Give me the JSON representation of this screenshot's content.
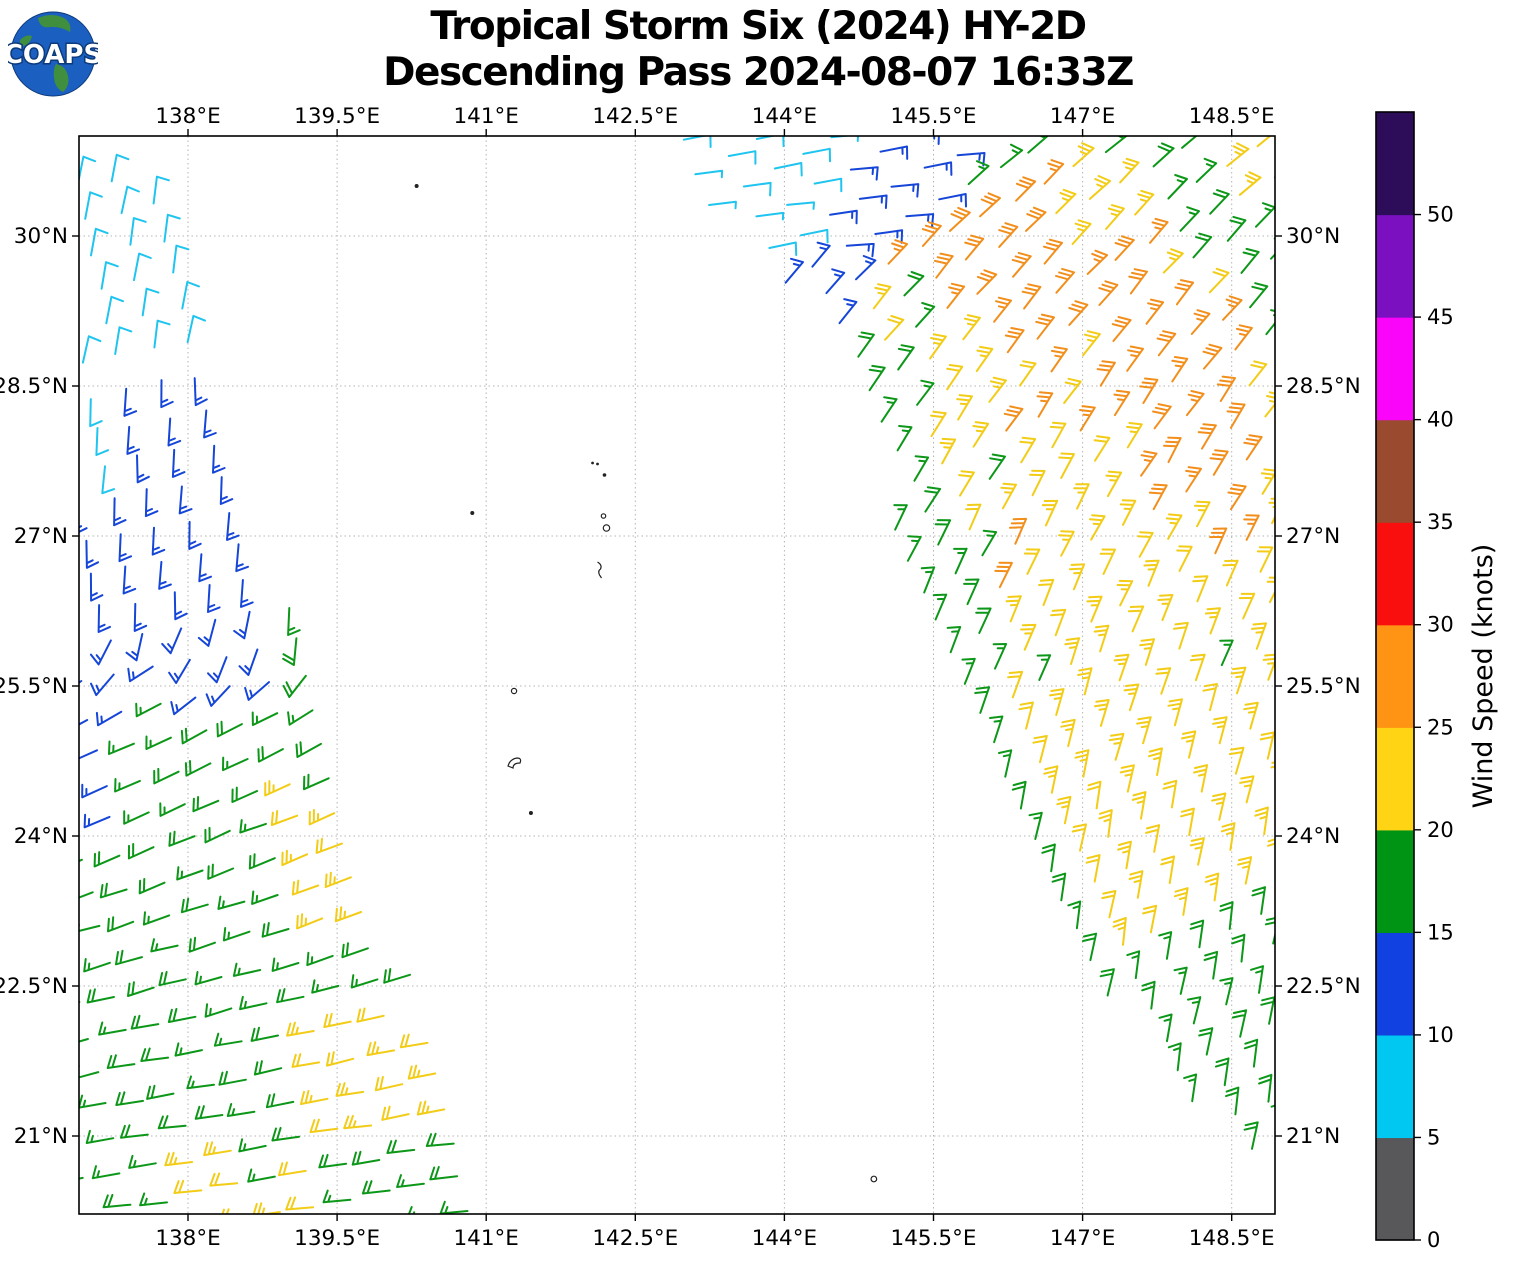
{
  "header": {
    "title_line1": "Tropical Storm Six (2024) HY-2D",
    "title_line2": "Descending Pass 2024-08-07 16:33Z",
    "logo_text": "COAPS"
  },
  "colorbar": {
    "label": "Wind Speed (knots)",
    "tick_labels": [
      "0",
      "5",
      "10",
      "15",
      "20",
      "25",
      "30",
      "35",
      "40",
      "45",
      "50"
    ],
    "levels": [
      0,
      5,
      10,
      15,
      20,
      25,
      30,
      35,
      40,
      45,
      50
    ],
    "segment_colors_bottom_to_top": [
      "#58585a",
      "#00c8f0",
      "#1141e0",
      "#009415",
      "#ffd414",
      "#ff9313",
      "#fa0f0f",
      "#9a4b2f",
      "#fa05fa",
      "#7a10c0",
      "#2d0d5a"
    ]
  },
  "map": {
    "lon_ticks": [
      {
        "v": 138,
        "label": "138°E"
      },
      {
        "v": 139.5,
        "label": "139.5°E"
      },
      {
        "v": 141,
        "label": "141°E"
      },
      {
        "v": 142.5,
        "label": "142.5°E"
      },
      {
        "v": 144,
        "label": "144°E"
      },
      {
        "v": 145.5,
        "label": "145.5°E"
      },
      {
        "v": 147,
        "label": "147°E"
      },
      {
        "v": 148.5,
        "label": "148.5°E"
      }
    ],
    "lat_ticks": [
      {
        "v": 30,
        "label": "30°N"
      },
      {
        "v": 28.5,
        "label": "28.5°N"
      },
      {
        "v": 27,
        "label": "27°N"
      },
      {
        "v": 25.5,
        "label": "25.5°N"
      },
      {
        "v": 24,
        "label": "24°N"
      },
      {
        "v": 22.5,
        "label": "22.5°N"
      },
      {
        "v": 21,
        "label": "21°N"
      }
    ],
    "lon_range": [
      136.9,
      148.94
    ],
    "lat_range": [
      20.22,
      31.0
    ]
  },
  "chart_data": {
    "type": "wind_barb_map",
    "title": "Tropical Storm Six (2024) HY-2D",
    "satellite": "HY-2D",
    "pass_type": "Descending",
    "datetime_utc": "2024-08-07 16:33Z",
    "units": "knots",
    "wind_speed_scale": {
      "levels_knots": [
        0,
        5,
        10,
        15,
        20,
        25,
        30,
        35,
        40,
        45,
        50
      ],
      "colors": [
        "#58585a",
        "#00c8f0",
        "#1141e0",
        "#009415",
        "#ffd414",
        "#ff9313",
        "#fa0f0f",
        "#9a4b2f",
        "#fa05fa",
        "#7a10c0",
        "#2d0d5a"
      ]
    },
    "barb_palette": {
      "cyan": "#1fc4ef",
      "blue": "#1646d8",
      "green": "#0c9718",
      "yellow": "#f2cc16",
      "orange": "#f28f1c"
    },
    "barb_glyph": {
      "staff_len": 27,
      "full_feather": 12.5,
      "half_feather": 6.5,
      "feather_spacing": 4.6,
      "stroke_width": 2
    },
    "swaths": [
      {
        "name": "west",
        "right_edge_lon_by_lat": [
          [
            30.6,
            137.9
          ],
          [
            30.3,
            137.97
          ],
          [
            29.0,
            138.15
          ],
          [
            28.0,
            138.45
          ],
          [
            27.0,
            138.8
          ],
          [
            26.0,
            139.15
          ],
          [
            25.0,
            139.45
          ],
          [
            24.0,
            139.85
          ],
          [
            23.0,
            140.1
          ],
          [
            22.0,
            140.45
          ],
          [
            21.0,
            140.85
          ],
          [
            20.2,
            141.2
          ]
        ],
        "top_edge": {
          "lat0": 30.78,
          "slope_per_lon": -0.5,
          "lon0": 136.9
        },
        "lattice": {
          "u": [
            36,
            -7
          ],
          "v": [
            8,
            34
          ]
        },
        "speed_zones_knots": {
          "cyan_lat_min": 28.7,
          "cyan_leftedge_lat_min": 27.8,
          "blue_lat_min": 25.3,
          "blue_leftedge_lat_min": 24.15,
          "green_rightedge_lat_max": 26.8,
          "yellow_band1": {
            "lat": [
              23.0,
              24.45
            ],
            "edge_offset": -0.78
          },
          "yellow_band2": {
            "lat": [
              21.15,
              22.45
            ],
            "lon_min": 139.25
          },
          "yellow_band3": {
            "lat_max": 20.9,
            "lon": [
              137.8,
              139.55
            ]
          }
        },
        "direction_model": {
          "upper": {
            "lat_min": 28.55,
            "staff_deg": 80,
            "feather_off_deg": -100
          },
          "middle": {
            "lat_min": 26.2,
            "staff_deg": 268,
            "feather_off_deg": 115
          },
          "lower": {
            "staff_deg_from_to": [
              208,
              188
            ],
            "lat_from_to": [
              25.4,
              21.0
            ],
            "feather_off_deg": -115
          }
        }
      },
      {
        "name": "east",
        "left_edge_lon_by_lat": [
          [
            31.0,
            142.9
          ],
          [
            30.5,
            143.05
          ],
          [
            29.5,
            144.0
          ],
          [
            28.5,
            144.8
          ],
          [
            27.5,
            144.95
          ],
          [
            26.0,
            145.45
          ],
          [
            25.0,
            145.75
          ],
          [
            24.0,
            146.2
          ],
          [
            23.0,
            146.75
          ],
          [
            22.0,
            147.45
          ],
          [
            21.3,
            148.1
          ],
          [
            20.8,
            148.8
          ]
        ],
        "lat_min": 20.82,
        "lattice": {
          "u": [
            31,
            -16
          ],
          "v": [
            14,
            31
          ]
        },
        "speed_zones_knots": {
          "cyan": {
            "lat_min": 29.3,
            "lon_lim0": 144.8,
            "lat_ref": 30.73,
            "slope": 0.75
          },
          "blue": {
            "lat_min": 29.0,
            "lon_lim0": 145.85,
            "lat_ref": 30.73,
            "slope": 0.8
          },
          "green_inner_band_offset": 0.55,
          "green_top_band": {
            "lat_min": 28.9,
            "lon0": 146.5,
            "lat_ref": 30.73,
            "slope": 1.0
          },
          "green_right": {
            "lat_min": 27.9,
            "lon0": 147.55,
            "lat_ref": 30.6,
            "slope": 0.3
          },
          "green_bottom": {
            "lat0": 21.9,
            "lon0": 146.9,
            "slope": 0.75
          },
          "orange_ellipses": [
            {
              "c": [
                146.3,
                29.55
              ],
              "theta_deg": -28,
              "a": 1.35,
              "b": 0.6
            },
            {
              "c": [
                147.9,
                28.55
              ],
              "theta_deg": -55,
              "a": 1.3,
              "b": 0.68
            }
          ],
          "orange_blobs": [
            [
              146.3,
              27.9,
              0.32
            ],
            [
              147.95,
              27.6,
              0.38
            ],
            [
              146.2,
              26.6,
              0.22
            ],
            [
              148.48,
              26.85,
              0.25
            ]
          ]
        },
        "direction_model": {
          "top_corner": {
            "lat_min": 29.7,
            "staff_deg": 8,
            "feather_off_deg": -100
          },
          "main": {
            "staff_base_deg": 44,
            "per_deg_lat": 5.5,
            "lat_ref": 30.4,
            "max_deg": 80,
            "feather_off_deg": 115
          }
        }
      }
    ],
    "islands_lonlat": [
      {
        "lon": 140.3,
        "lat": 30.5,
        "type": "dot",
        "r": 2
      },
      {
        "lon": 140.86,
        "lat": 27.23,
        "type": "dot",
        "r": 2
      },
      {
        "lon": 142.07,
        "lat": 27.73,
        "type": "dot",
        "r": 1.4
      },
      {
        "lon": 142.12,
        "lat": 27.72,
        "type": "dot",
        "r": 1.4
      },
      {
        "lon": 142.19,
        "lat": 27.61,
        "type": "dot",
        "r": 1.8
      },
      {
        "lon": 142.18,
        "lat": 27.2,
        "type": "circle",
        "r": 2.2
      },
      {
        "lon": 142.21,
        "lat": 27.08,
        "type": "circle",
        "r": 3.2
      },
      {
        "lon": 142.14,
        "lat": 26.68,
        "type": "squiggle"
      },
      {
        "lon": 141.28,
        "lat": 25.45,
        "type": "circle",
        "r": 2.6
      },
      {
        "lon": 141.3,
        "lat": 24.74,
        "type": "hook"
      },
      {
        "lon": 141.45,
        "lat": 24.23,
        "type": "dot",
        "r": 2
      },
      {
        "lon": 144.9,
        "lat": 20.57,
        "type": "circle",
        "r": 2.8
      }
    ]
  }
}
